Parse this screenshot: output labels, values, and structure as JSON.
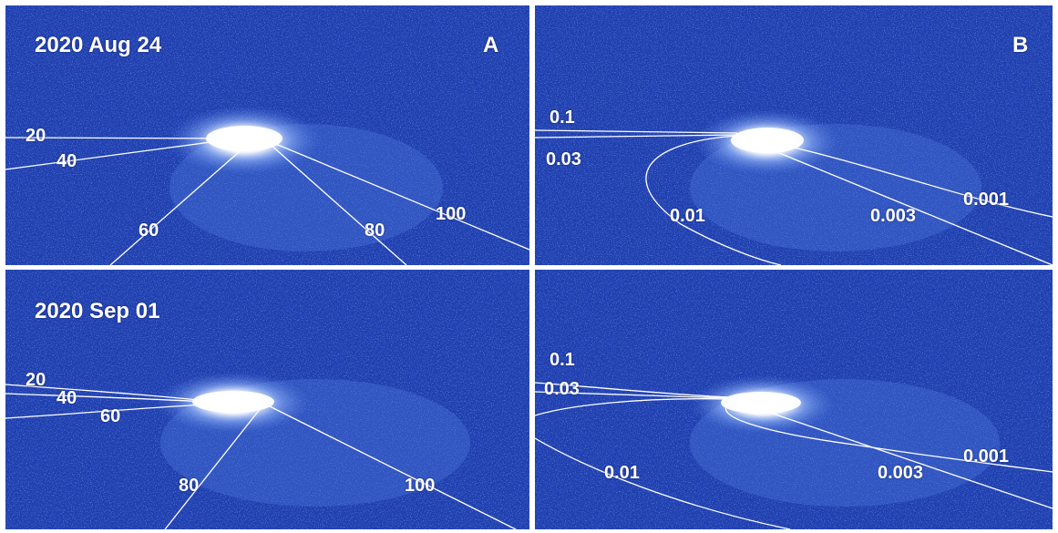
{
  "figure": {
    "colors": {
      "background": "#1f3fb0",
      "noise_light": "#5c86e8",
      "coma": "#ffffff",
      "lines": "#ffffff"
    },
    "panels": [
      {
        "id": "top-left",
        "date_label": "2020 Aug 24",
        "panel_letter": "A",
        "line_labels": [
          "20",
          "40",
          "60",
          "80",
          "100"
        ]
      },
      {
        "id": "top-right",
        "panel_letter": "B",
        "line_labels": [
          "0.1",
          "0.03",
          "0.01",
          "0.003",
          "0.001"
        ]
      },
      {
        "id": "bottom-left",
        "date_label": "2020 Sep 01",
        "line_labels": [
          "20",
          "40",
          "60",
          "80",
          "100"
        ]
      },
      {
        "id": "bottom-right",
        "line_labels": [
          "0.1",
          "0.03",
          "0.01",
          "0.003",
          "0.001"
        ]
      }
    ]
  }
}
